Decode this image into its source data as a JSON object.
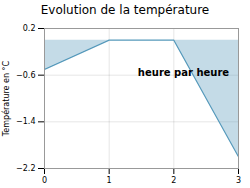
{
  "chart_data": {
    "type": "area",
    "title": "Evolution de la température",
    "ylabel": "Température en °C",
    "annotation": "heure par heure",
    "x": [
      0,
      1,
      2,
      3
    ],
    "values": [
      -0.5,
      0.0,
      0.0,
      -2.0
    ],
    "color": "#5599bb",
    "xlim": [
      0,
      3
    ],
    "ylim": [
      -2.2,
      0.2
    ],
    "xticks": [
      0,
      1,
      2,
      3
    ],
    "yticks": [
      0.2,
      -0.6,
      -1.4,
      -2.2
    ],
    "grid": true
  }
}
